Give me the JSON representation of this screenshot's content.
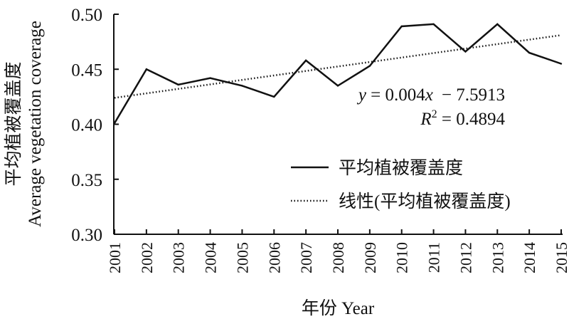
{
  "chart_data": {
    "type": "line",
    "xlabel": "年份 Year",
    "ylabel_zh": "平均植被覆盖度",
    "ylabel_en": "Average vegetation coverage",
    "x": [
      "2001",
      "2002",
      "2003",
      "2004",
      "2005",
      "2006",
      "2007",
      "2008",
      "2009",
      "2010",
      "2011",
      "2012",
      "2013",
      "2014",
      "2015"
    ],
    "ylim": [
      0.3,
      0.5
    ],
    "yticks": [
      "0.30",
      "0.35",
      "0.40",
      "0.45",
      "0.50"
    ],
    "grid": false,
    "legend_position": "center-right",
    "series": [
      {
        "name": "平均植被覆盖度",
        "style": "solid",
        "values": [
          0.401,
          0.45,
          0.436,
          0.442,
          0.435,
          0.425,
          0.458,
          0.435,
          0.453,
          0.489,
          0.491,
          0.466,
          0.491,
          0.465,
          0.455
        ]
      },
      {
        "name": "线性(平均植被覆盖度)",
        "style": "dotted",
        "trend": {
          "slope": 0.004,
          "intercept": -7.5913,
          "start": 0.424,
          "end": 0.481
        }
      }
    ],
    "annotations": {
      "equation_y": "y",
      "equation_rest": " = 0.004",
      "equation_x": "x",
      "equation_tail": "− 7.5913",
      "r2_prefix": "R",
      "r2_sup": "2",
      "r2_value": " = 0.4894"
    }
  }
}
